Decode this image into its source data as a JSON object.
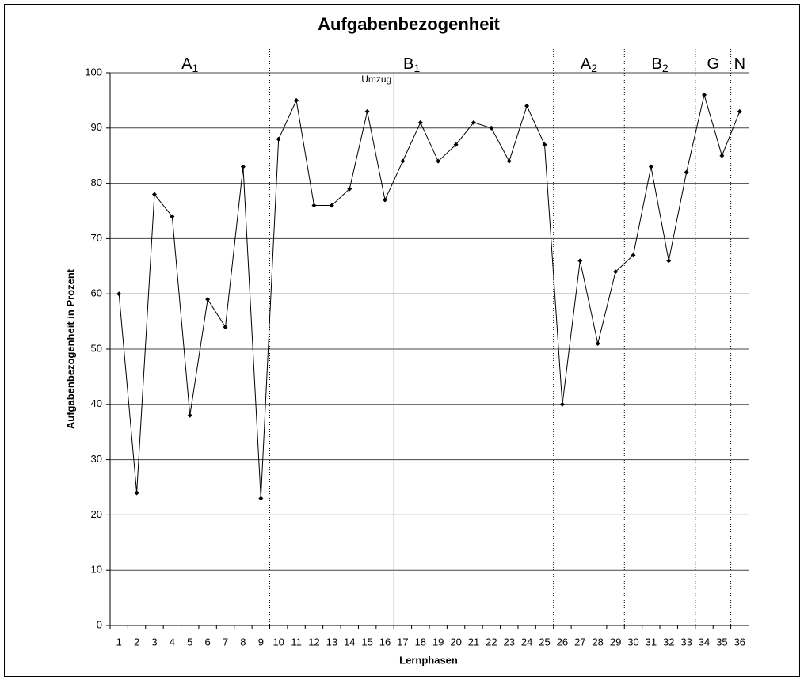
{
  "chart_data": {
    "type": "line",
    "title": "Aufgabenbezogenheit",
    "x_label": "Lernphasen",
    "y_label": "Aufgabenbezogenheit in Prozent",
    "categories": [
      "1",
      "2",
      "3",
      "4",
      "5",
      "6",
      "7",
      "8",
      "9",
      "10",
      "11",
      "12",
      "13",
      "14",
      "15",
      "16",
      "17",
      "18",
      "19",
      "20",
      "21",
      "22",
      "23",
      "24",
      "25",
      "26",
      "27",
      "28",
      "29",
      "30",
      "31",
      "32",
      "33",
      "34",
      "35",
      "36"
    ],
    "series": [
      {
        "name": "Aufgabenbezogenheit",
        "color": "#000000",
        "values": [
          60,
          24,
          78,
          74,
          38,
          59,
          54,
          83,
          23,
          88,
          95,
          76,
          76,
          79,
          93,
          77,
          84,
          91,
          84,
          87,
          91,
          90,
          84,
          94,
          87,
          40,
          66,
          51,
          64,
          67,
          83,
          66,
          82,
          96,
          85,
          93
        ]
      }
    ],
    "ylim": [
      0,
      100
    ],
    "yticks": [
      0,
      10,
      20,
      30,
      40,
      50,
      60,
      70,
      80,
      90,
      100
    ],
    "grid": true,
    "phases": [
      {
        "name": "A",
        "sub": "1",
        "first": "1",
        "last": "9"
      },
      {
        "name": "B",
        "sub": "1",
        "first": "10",
        "last": "25"
      },
      {
        "name": "A",
        "sub": "2",
        "first": "26",
        "last": "29"
      },
      {
        "name": "B",
        "sub": "2",
        "first": "30",
        "last": "33"
      },
      {
        "name": "G",
        "first": "34",
        "last": "35"
      },
      {
        "name": "N",
        "first": "36",
        "last": "36"
      }
    ],
    "annotations": [
      {
        "text": "Umzug",
        "after": "16"
      }
    ]
  }
}
